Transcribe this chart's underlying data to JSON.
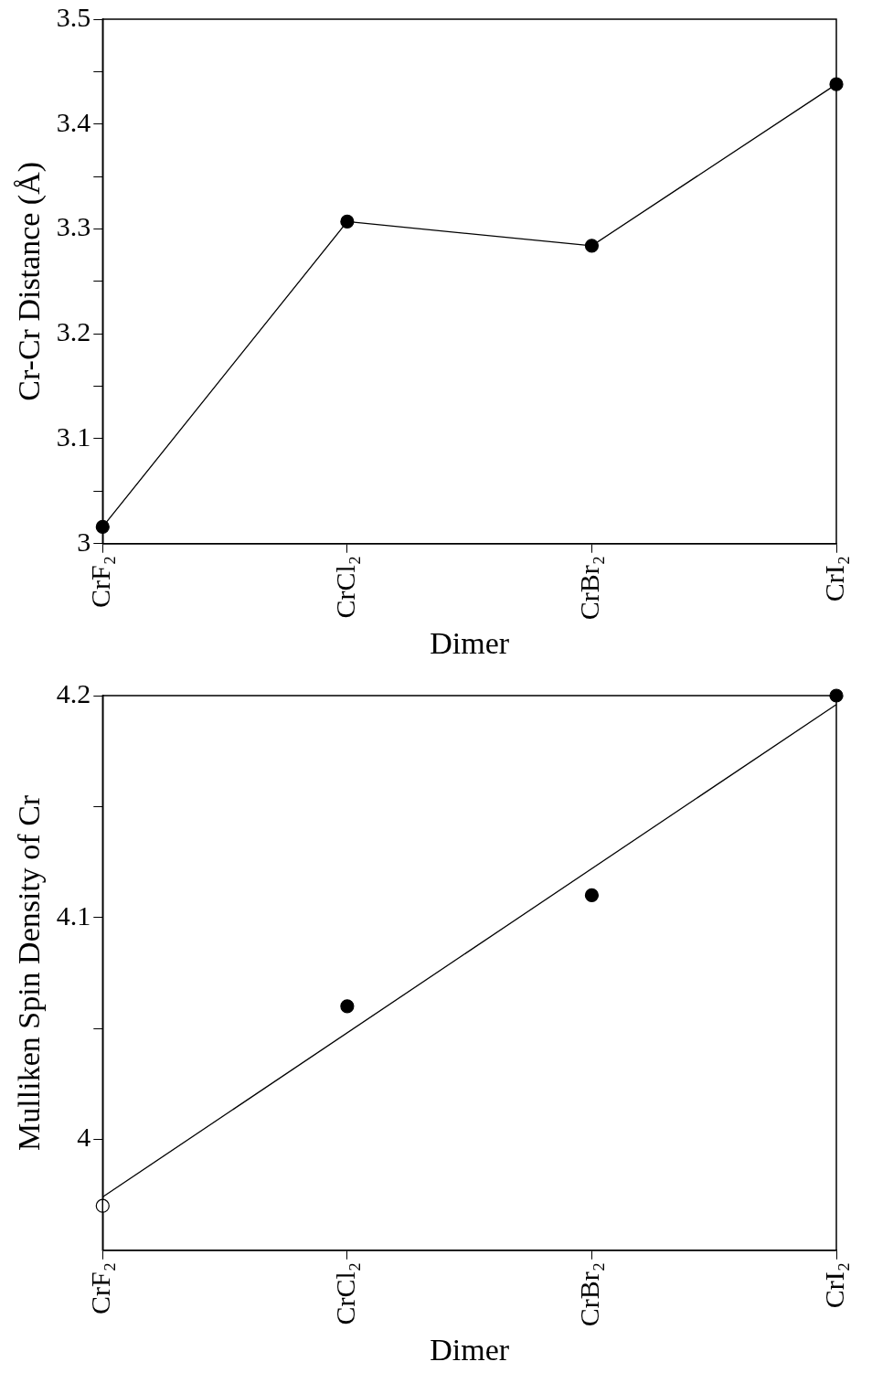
{
  "chart_data": [
    {
      "type": "line",
      "xlabel": "Dimer",
      "ylabel": "Cr-Cr Distance (Å)",
      "categories": [
        "CrF₂",
        "CrCl₂",
        "CrBr₂",
        "CrI₂"
      ],
      "marker": "circle",
      "line_style": "solid",
      "grid": false,
      "legend": false,
      "series": [
        {
          "color": "#000000",
          "values": [
            3.016,
            3.307,
            3.284,
            3.438
          ]
        }
      ],
      "ylim": [
        3,
        3.5
      ],
      "yticks": [
        3,
        {
          "value": 3.05,
          "label": null
        },
        3.1,
        {
          "value": 3.15,
          "label": null
        },
        3.2,
        {
          "value": 3.25,
          "label": null
        },
        3.3,
        {
          "value": 3.35,
          "label": null
        },
        3.4,
        {
          "value": 3.45,
          "label": null
        },
        3.5
      ]
    },
    {
      "type": "scatter",
      "xlabel": "Dimer",
      "ylabel": "Mulliken Spin Density of Cr",
      "categories": [
        "CrF₂",
        "CrCl₂",
        "CrBr₂",
        "CrI₂"
      ],
      "marker": "circle",
      "grid": false,
      "legend": false,
      "series": [
        {
          "color": "#000000",
          "colors": [
            "#ffffff",
            "#000000",
            "#000000",
            "#000000"
          ],
          "values": [
            3.97,
            4.06,
            4.11,
            4.2
          ]
        },
        {
          "type": "line",
          "color": "#000000",
          "marker": "none",
          "line_style": "solid",
          "x": [
            "CrF₂",
            "CrI₂"
          ],
          "values": [
            3.974,
            4.196
          ]
        }
      ],
      "ylim": [
        3.95,
        4.2
      ],
      "yticks": [
        4,
        {
          "value": 4.05,
          "label": null
        },
        4.1,
        {
          "value": 4.15,
          "label": null
        },
        4.2
      ]
    }
  ]
}
